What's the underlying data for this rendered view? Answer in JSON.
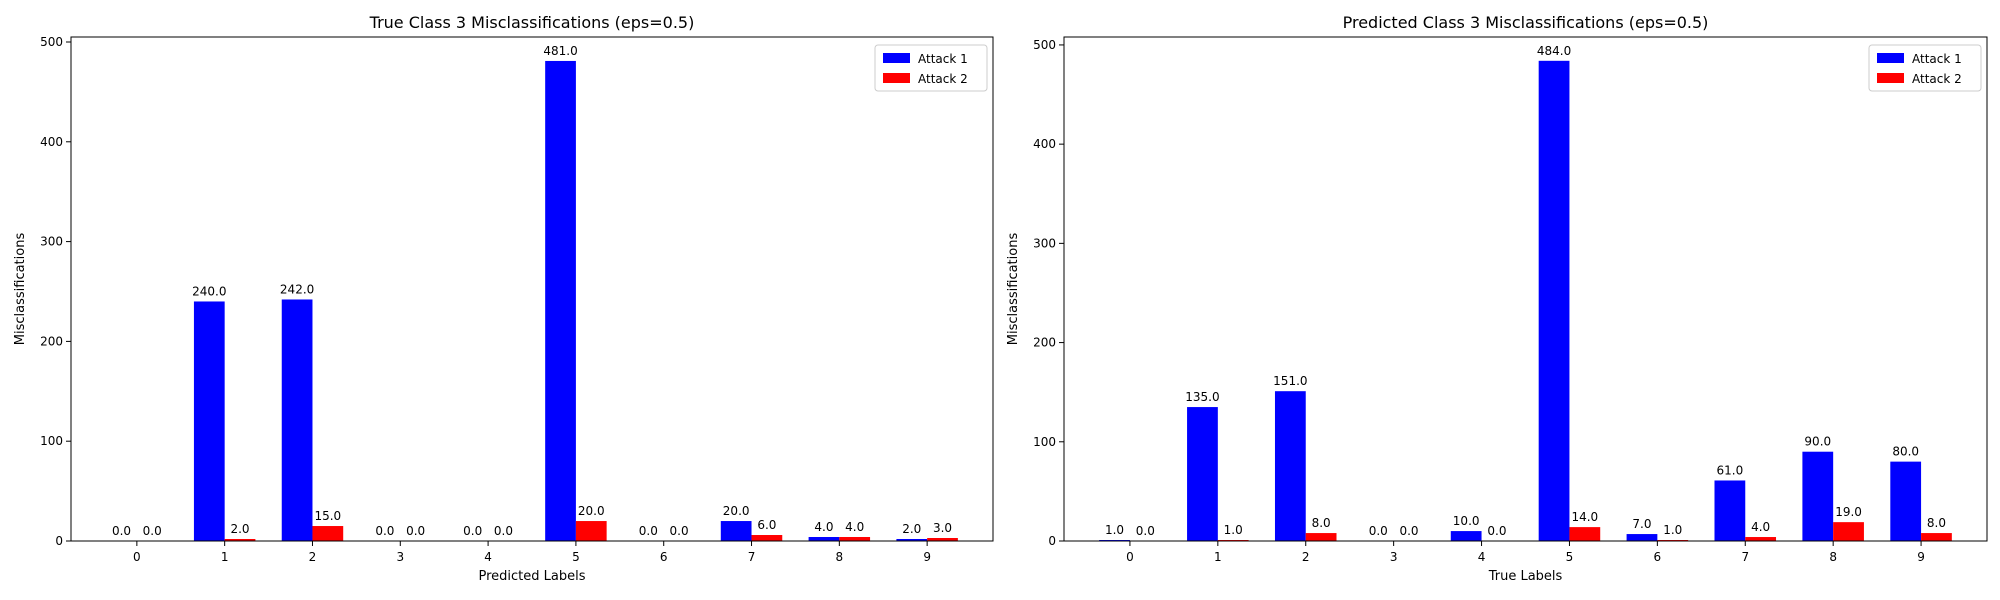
{
  "colors": {
    "attack1": "#0000ff",
    "attack2": "#ff0000"
  },
  "chart_data": [
    {
      "type": "bar",
      "title": "True Class 3 Misclassifications (eps=0.5)",
      "xlabel": "Predicted Labels",
      "ylabel": "Misclassifications",
      "categories": [
        "0",
        "1",
        "2",
        "3",
        "4",
        "5",
        "6",
        "7",
        "8",
        "9"
      ],
      "ylim": [
        0,
        505
      ],
      "yticks": [
        0,
        100,
        200,
        300,
        400,
        500
      ],
      "grid": false,
      "legend_position": "top-right",
      "series": [
        {
          "name": "Attack 1",
          "values": [
            0,
            240,
            242,
            0,
            0,
            481,
            0,
            20,
            4,
            2
          ],
          "labels": [
            "0.0",
            "240.0",
            "242.0",
            "0.0",
            "0.0",
            "481.0",
            "0.0",
            "20.0",
            "4.0",
            "2.0"
          ]
        },
        {
          "name": "Attack 2",
          "values": [
            0,
            2,
            15,
            0,
            0,
            20,
            0,
            6,
            4,
            3
          ],
          "labels": [
            "0.0",
            "2.0",
            "15.0",
            "0.0",
            "0.0",
            "20.0",
            "0.0",
            "6.0",
            "4.0",
            "3.0"
          ]
        }
      ]
    },
    {
      "type": "bar",
      "title": "Predicted Class 3 Misclassifications (eps=0.5)",
      "xlabel": "True Labels",
      "ylabel": "Misclassifications",
      "categories": [
        "0",
        "1",
        "2",
        "3",
        "4",
        "5",
        "6",
        "7",
        "8",
        "9"
      ],
      "ylim": [
        0,
        508
      ],
      "yticks": [
        0,
        100,
        200,
        300,
        400,
        500
      ],
      "grid": false,
      "legend_position": "top-right",
      "series": [
        {
          "name": "Attack 1",
          "values": [
            1,
            135,
            151,
            0,
            10,
            484,
            7,
            61,
            90,
            80
          ],
          "labels": [
            "1.0",
            "135.0",
            "151.0",
            "0.0",
            "10.0",
            "484.0",
            "7.0",
            "61.0",
            "90.0",
            "80.0"
          ]
        },
        {
          "name": "Attack 2",
          "values": [
            0,
            1,
            8,
            0,
            0,
            14,
            1,
            4,
            19,
            8
          ],
          "labels": [
            "0.0",
            "1.0",
            "8.0",
            "0.0",
            "0.0",
            "14.0",
            "1.0",
            "4.0",
            "19.0",
            "8.0"
          ]
        }
      ]
    }
  ]
}
